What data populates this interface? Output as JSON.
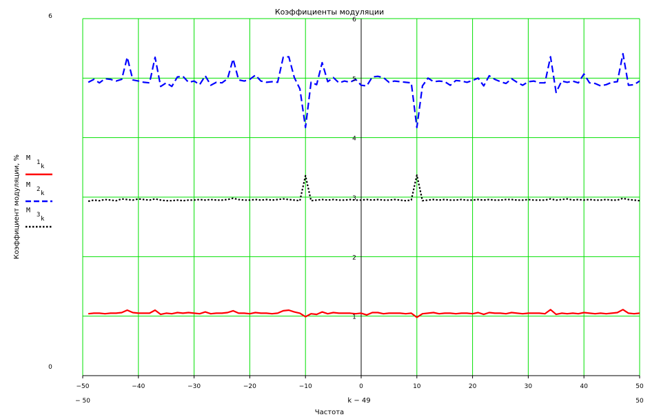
{
  "chart_data": {
    "type": "line",
    "title": "Коэффициенты модуляции",
    "xlabel": "Частота",
    "ylabel": "Коэффициент модуляции, %",
    "x_expression": "k − 49",
    "x_range_min_label": "− 50",
    "x_range_max_label": "50",
    "y_range_min_label": "0",
    "y_range_max_label": "6",
    "xlim": [
      -50,
      50
    ],
    "ylim": [
      0,
      6
    ],
    "grid": true,
    "legend_placement": "left",
    "x_ticks": [
      "−50",
      "−40",
      "−30",
      "−20",
      "−10",
      "0",
      "10",
      "20",
      "30",
      "40",
      "50"
    ],
    "y_ticks": [
      "1",
      "2",
      "3",
      "4",
      "5",
      "6"
    ],
    "x": [
      -49,
      -48,
      -47,
      -46,
      -45,
      -44,
      -43,
      -42,
      -41,
      -40,
      -39,
      -38,
      -37,
      -36,
      -35,
      -34,
      -33,
      -32,
      -31,
      -30,
      -29,
      -28,
      -27,
      -26,
      -25,
      -24,
      -23,
      -22,
      -21,
      -20,
      -19,
      -18,
      -17,
      -16,
      -15,
      -14,
      -13,
      -12,
      -11,
      -10,
      -9,
      -8,
      -7,
      -6,
      -5,
      -4,
      -3,
      -2,
      -1,
      0,
      1,
      2,
      3,
      4,
      5,
      6,
      7,
      8,
      9,
      10,
      11,
      12,
      13,
      14,
      15,
      16,
      17,
      18,
      19,
      20,
      21,
      22,
      23,
      24,
      25,
      26,
      27,
      28,
      29,
      30,
      31,
      32,
      33,
      34,
      35,
      36,
      37,
      38,
      39,
      40,
      41,
      42,
      43,
      44,
      45,
      46,
      47,
      48,
      49,
      50
    ],
    "series": [
      {
        "legend_label": "M",
        "legend_subscript": "1",
        "legend_index": "k",
        "color": "#ff0000",
        "dash": "solid",
        "values": [
          1.04,
          1.05,
          1.05,
          1.04,
          1.05,
          1.05,
          1.06,
          1.1,
          1.06,
          1.05,
          1.05,
          1.05,
          1.1,
          1.03,
          1.05,
          1.04,
          1.06,
          1.05,
          1.06,
          1.05,
          1.04,
          1.07,
          1.04,
          1.05,
          1.05,
          1.06,
          1.09,
          1.05,
          1.05,
          1.04,
          1.06,
          1.05,
          1.05,
          1.04,
          1.05,
          1.09,
          1.1,
          1.07,
          1.05,
          0.99,
          1.04,
          1.03,
          1.07,
          1.04,
          1.06,
          1.05,
          1.05,
          1.05,
          1.04,
          1.05,
          1.02,
          1.06,
          1.06,
          1.04,
          1.05,
          1.05,
          1.05,
          1.04,
          1.05,
          0.98,
          1.04,
          1.05,
          1.06,
          1.04,
          1.05,
          1.05,
          1.04,
          1.05,
          1.05,
          1.04,
          1.06,
          1.03,
          1.06,
          1.05,
          1.05,
          1.04,
          1.06,
          1.05,
          1.04,
          1.05,
          1.05,
          1.05,
          1.04,
          1.11,
          1.03,
          1.05,
          1.04,
          1.05,
          1.04,
          1.06,
          1.05,
          1.04,
          1.05,
          1.04,
          1.05,
          1.06,
          1.11,
          1.05,
          1.04,
          1.05
        ]
      },
      {
        "legend_label": "M",
        "legend_subscript": "2",
        "legend_index": "k",
        "color": "#0000ff",
        "dash": "dashed",
        "values": [
          4.93,
          4.98,
          4.92,
          4.99,
          4.98,
          4.95,
          4.98,
          5.35,
          4.97,
          4.95,
          4.93,
          4.92,
          5.35,
          4.86,
          4.92,
          4.86,
          5.02,
          5.03,
          4.93,
          4.95,
          4.89,
          5.04,
          4.88,
          4.93,
          4.92,
          4.99,
          5.32,
          4.97,
          4.95,
          4.98,
          5.05,
          4.95,
          4.93,
          4.94,
          4.93,
          5.35,
          5.36,
          5.01,
          4.82,
          4.17,
          4.93,
          4.89,
          5.26,
          4.94,
          5.01,
          4.92,
          4.95,
          4.93,
          4.98,
          4.88,
          4.87,
          5.02,
          5.03,
          5.01,
          4.93,
          4.95,
          4.94,
          4.93,
          4.92,
          4.17,
          4.87,
          5.0,
          4.94,
          4.95,
          4.94,
          4.88,
          4.96,
          4.95,
          4.93,
          4.96,
          5.0,
          4.87,
          5.04,
          4.98,
          4.94,
          4.91,
          4.99,
          4.93,
          4.88,
          4.94,
          4.95,
          4.92,
          4.92,
          5.36,
          4.76,
          4.95,
          4.93,
          4.95,
          4.92,
          5.07,
          4.92,
          4.91,
          4.87,
          4.89,
          4.93,
          4.94,
          5.41,
          4.88,
          4.89,
          4.95
        ]
      },
      {
        "legend_label": "M",
        "legend_subscript": "3",
        "legend_index": "k",
        "color": "#000000",
        "dash": "dotted",
        "values": [
          2.93,
          2.95,
          2.94,
          2.96,
          2.95,
          2.94,
          2.97,
          2.96,
          2.95,
          2.97,
          2.96,
          2.95,
          2.97,
          2.95,
          2.94,
          2.94,
          2.95,
          2.94,
          2.95,
          2.95,
          2.96,
          2.95,
          2.96,
          2.95,
          2.95,
          2.96,
          2.98,
          2.96,
          2.95,
          2.95,
          2.96,
          2.95,
          2.96,
          2.95,
          2.96,
          2.97,
          2.96,
          2.95,
          2.94,
          3.36,
          2.94,
          2.95,
          2.96,
          2.95,
          2.96,
          2.95,
          2.95,
          2.96,
          2.95,
          2.95,
          2.96,
          2.95,
          2.96,
          2.95,
          2.95,
          2.96,
          2.95,
          2.94,
          2.95,
          3.37,
          2.94,
          2.95,
          2.96,
          2.95,
          2.96,
          2.95,
          2.95,
          2.96,
          2.95,
          2.95,
          2.96,
          2.95,
          2.96,
          2.95,
          2.95,
          2.96,
          2.96,
          2.95,
          2.95,
          2.96,
          2.95,
          2.95,
          2.95,
          2.97,
          2.95,
          2.96,
          2.97,
          2.95,
          2.96,
          2.95,
          2.96,
          2.95,
          2.95,
          2.96,
          2.95,
          2.95,
          2.98,
          2.96,
          2.95,
          2.94
        ]
      }
    ]
  }
}
